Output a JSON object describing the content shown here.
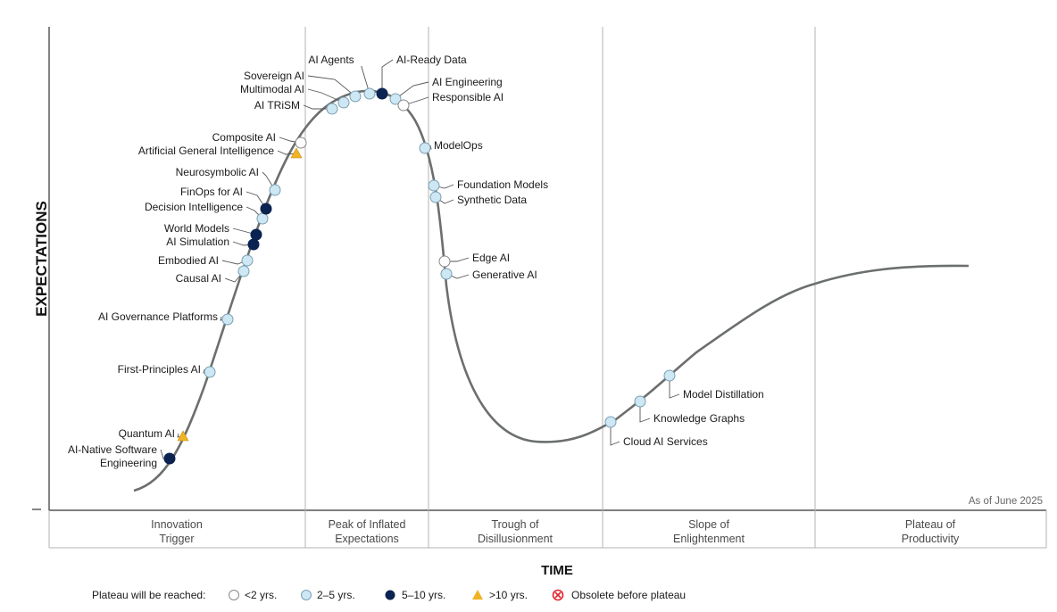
{
  "chart_data": {
    "type": "hype-cycle",
    "ylabel": "EXPECTATIONS",
    "xlabel": "TIME",
    "as_of": "As of June 2025",
    "phases": [
      {
        "line1": "Innovation",
        "line2": "Trigger"
      },
      {
        "line1": "Peak of Inflated",
        "line2": "Expectations"
      },
      {
        "line1": "Trough of",
        "line2": "Disillusionment"
      },
      {
        "line1": "Slope of",
        "line2": "Enlightenment"
      },
      {
        "line1": "Plateau of",
        "line2": "Productivity"
      }
    ],
    "legend": {
      "title": "Plateau will be reached:",
      "items": [
        {
          "key": "lt2",
          "label": "<2 yrs."
        },
        {
          "key": "2to5",
          "label": "2–5 yrs."
        },
        {
          "key": "5to10",
          "label": "5–10 yrs."
        },
        {
          "key": "gt10",
          "label": ">10 yrs."
        },
        {
          "key": "obsolete",
          "label": "Obsolete before plateau"
        }
      ]
    },
    "technologies": [
      {
        "name": "AI-Native Software Engineering",
        "lines": [
          "AI-Native Software",
          "Engineering"
        ],
        "plateau": "5to10"
      },
      {
        "name": "Quantum AI",
        "lines": [
          "Quantum AI"
        ],
        "plateau": "gt10"
      },
      {
        "name": "First-Principles AI",
        "lines": [
          "First-Principles AI"
        ],
        "plateau": "2to5"
      },
      {
        "name": "AI Governance Platforms",
        "lines": [
          "AI Governance Platforms"
        ],
        "plateau": "2to5"
      },
      {
        "name": "Causal AI",
        "lines": [
          "Causal AI"
        ],
        "plateau": "2to5"
      },
      {
        "name": "Embodied AI",
        "lines": [
          "Embodied AI"
        ],
        "plateau": "2to5"
      },
      {
        "name": "AI Simulation",
        "lines": [
          "AI Simulation"
        ],
        "plateau": "5to10"
      },
      {
        "name": "World Models",
        "lines": [
          "World Models"
        ],
        "plateau": "5to10"
      },
      {
        "name": "Decision Intelligence",
        "lines": [
          "Decision Intelligence"
        ],
        "plateau": "2to5"
      },
      {
        "name": "FinOps for AI",
        "lines": [
          "FinOps for AI"
        ],
        "plateau": "5to10"
      },
      {
        "name": "Neurosymbolic AI",
        "lines": [
          "Neurosymbolic AI"
        ],
        "plateau": "2to5"
      },
      {
        "name": "Artificial General Intelligence",
        "lines": [
          "Artificial General Intelligence"
        ],
        "plateau": "gt10"
      },
      {
        "name": "Composite AI",
        "lines": [
          "Composite AI"
        ],
        "plateau": "lt2"
      },
      {
        "name": "AI TRiSM",
        "lines": [
          "AI TRiSM"
        ],
        "plateau": "2to5"
      },
      {
        "name": "Multimodal AI",
        "lines": [
          "Multimodal AI"
        ],
        "plateau": "2to5"
      },
      {
        "name": "Sovereign AI",
        "lines": [
          "Sovereign AI"
        ],
        "plateau": "2to5"
      },
      {
        "name": "AI Agents",
        "lines": [
          "AI Agents"
        ],
        "plateau": "2to5"
      },
      {
        "name": "AI-Ready Data",
        "lines": [
          "AI-Ready Data"
        ],
        "plateau": "5to10"
      },
      {
        "name": "AI Engineering",
        "lines": [
          "AI Engineering"
        ],
        "plateau": "2to5"
      },
      {
        "name": "Responsible AI",
        "lines": [
          "Responsible AI"
        ],
        "plateau": "lt2"
      },
      {
        "name": "ModelOps",
        "lines": [
          "ModelOps"
        ],
        "plateau": "2to5"
      },
      {
        "name": "Foundation Models",
        "lines": [
          "Foundation Models"
        ],
        "plateau": "2to5"
      },
      {
        "name": "Synthetic Data",
        "lines": [
          "Synthetic Data"
        ],
        "plateau": "2to5"
      },
      {
        "name": "Edge AI",
        "lines": [
          "Edge AI"
        ],
        "plateau": "lt2"
      },
      {
        "name": "Generative AI",
        "lines": [
          "Generative AI"
        ],
        "plateau": "2to5"
      },
      {
        "name": "Cloud AI Services",
        "lines": [
          "Cloud AI Services"
        ],
        "plateau": "2to5"
      },
      {
        "name": "Knowledge Graphs",
        "lines": [
          "Knowledge Graphs"
        ],
        "plateau": "2to5"
      },
      {
        "name": "Model Distillation",
        "lines": [
          "Model Distillation"
        ],
        "plateau": "2to5"
      }
    ]
  },
  "colors": {
    "curve": "#6b6f6d",
    "lt2": "#ffffff",
    "2to5": "#cde7f4",
    "5to10": "#0b2350",
    "gt10": "#f0b323",
    "obsolete": "#e0262e",
    "divider": "#b3b3b3",
    "marker_stroke": "#7b9fb2"
  }
}
